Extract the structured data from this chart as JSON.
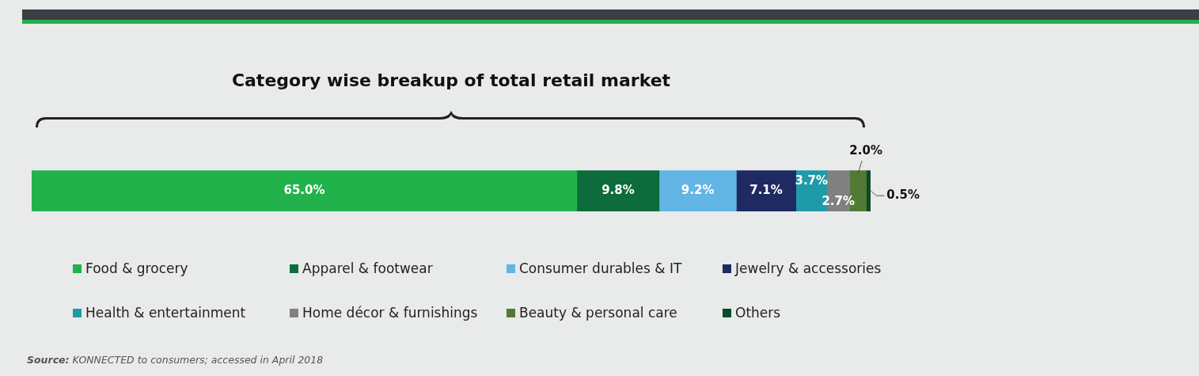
{
  "chart_data": {
    "type": "bar",
    "orientation": "horizontal",
    "stacked": true,
    "title": "Category wise breakup of total retail market",
    "categories": [
      null
    ],
    "xlim": [
      0,
      100
    ],
    "tick_labels": false,
    "legend": "bottom",
    "series": [
      {
        "name": "Food & grocery",
        "color": "#21b24b",
        "values": [
          65.0
        ],
        "value_labels": [
          "65.0%"
        ]
      },
      {
        "name": "Apparel & footwear",
        "color": "#0e6b3b",
        "values": [
          9.8
        ],
        "value_labels": [
          "9.8%"
        ]
      },
      {
        "name": "Consumer durables & IT",
        "color": "#62b5e5",
        "values": [
          9.2
        ],
        "value_labels": [
          "9.2%"
        ]
      },
      {
        "name": "Jewelry & accessories",
        "color": "#1f2a62",
        "values": [
          7.1
        ],
        "value_labels": [
          "7.1%"
        ]
      },
      {
        "name": "Health & entertainment",
        "color": "#1f9aa8",
        "values": [
          3.7
        ],
        "value_labels": [
          "3.7%"
        ]
      },
      {
        "name": "Home décor & furnishings",
        "color": "#808080",
        "values": [
          2.7
        ],
        "value_labels": [
          "2.7%"
        ]
      },
      {
        "name": "Beauty & personal care",
        "color": "#527a35",
        "values": [
          2.0
        ],
        "value_labels": [
          "2.0%"
        ]
      },
      {
        "name": "Others",
        "color": "#0b4a2a",
        "values": [
          0.5
        ],
        "value_labels": [
          "0.5%"
        ]
      }
    ],
    "annotations": [
      "Source: KONNECTED to consumers; accessed in April 2018"
    ]
  }
}
